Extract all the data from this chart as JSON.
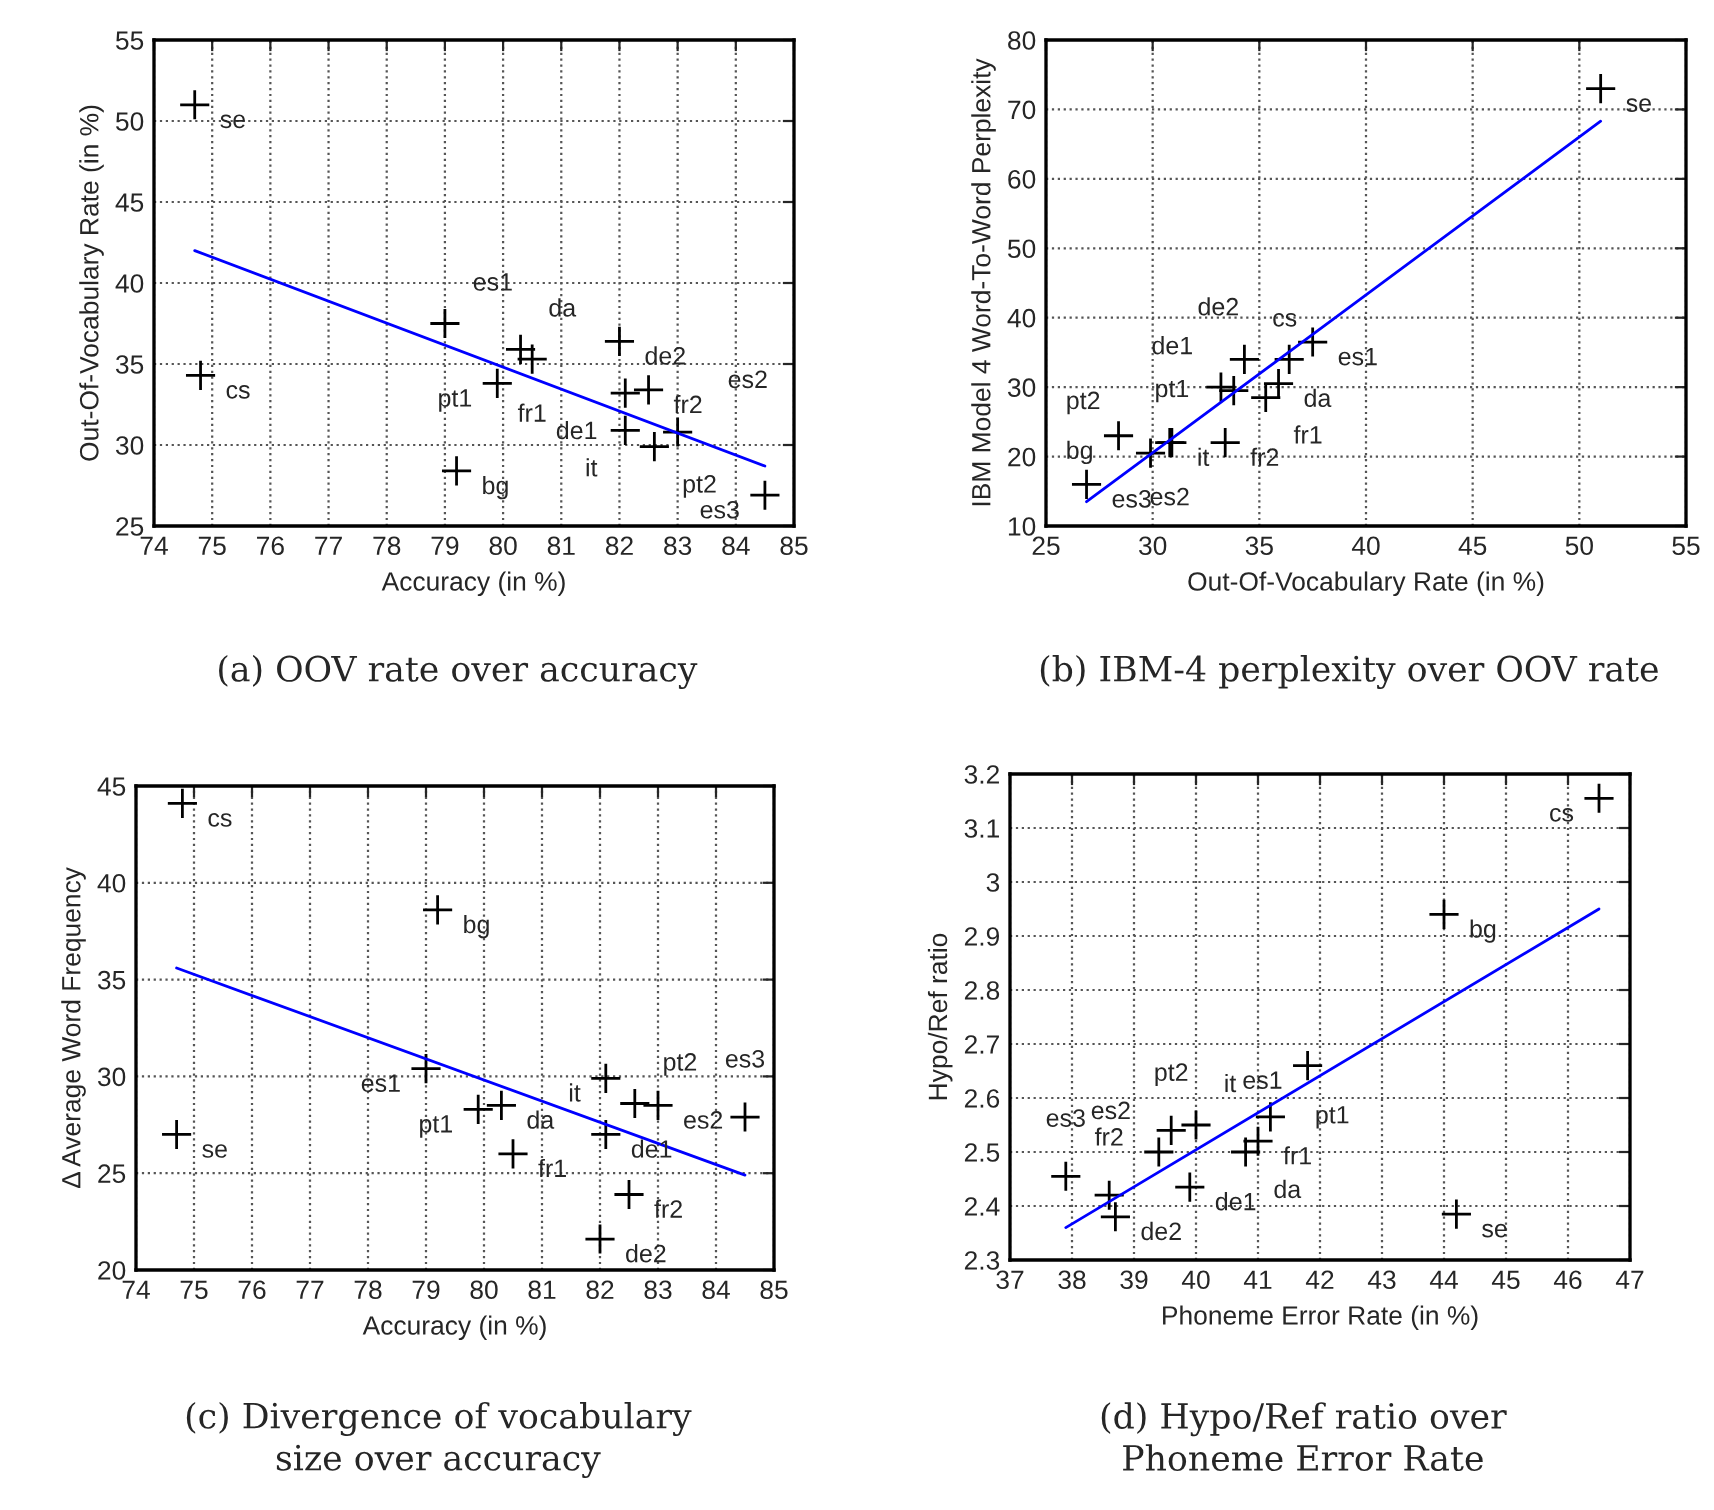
{
  "chart_data": [
    {
      "type": "scatter",
      "title": "(a) OOV rate over accuracy",
      "xlabel": "Accuracy (in %)",
      "ylabel": "Out-Of-Vocabulary Rate (in %)",
      "xlim": [
        74,
        85
      ],
      "ylim": [
        25,
        55
      ],
      "xticks": [
        74,
        75,
        76,
        77,
        78,
        79,
        80,
        81,
        82,
        83,
        84,
        85
      ],
      "yticks": [
        25,
        30,
        35,
        40,
        45,
        50,
        55
      ],
      "grid": true,
      "series": [
        {
          "marker": "cross",
          "color": "#000000",
          "x": [
            74.7,
            74.8,
            79.0,
            80.3,
            80.5,
            79.9,
            79.2,
            82.0,
            82.1,
            82.5,
            82.1,
            83.0,
            82.6,
            84.5
          ],
          "values": [
            51.0,
            34.3,
            37.5,
            35.9,
            35.3,
            33.8,
            28.4,
            36.4,
            33.2,
            33.4,
            30.9,
            30.8,
            29.9,
            26.9
          ]
        },
        {
          "type": "line",
          "color": "#0000ff",
          "x": [
            74.7,
            84.5
          ],
          "values": [
            42.0,
            28.7
          ]
        }
      ],
      "annotations": [
        {
          "text": "se",
          "x": 74.7,
          "y": 51.0
        },
        {
          "text": "cs",
          "x": 74.8,
          "y": 34.3
        },
        {
          "text": "es1",
          "x": 79.0,
          "y": 37.5
        },
        {
          "text": "da",
          "x": 80.3,
          "y": 35.9
        },
        {
          "text": "fr1",
          "x": 80.5,
          "y": 35.3
        },
        {
          "text": "pt1",
          "x": 79.9,
          "y": 33.8
        },
        {
          "text": "bg",
          "x": 79.2,
          "y": 28.4
        },
        {
          "text": "de2",
          "x": 82.0,
          "y": 36.4
        },
        {
          "text": "de1",
          "x": 82.1,
          "y": 33.2
        },
        {
          "text": "fr2",
          "x": 82.5,
          "y": 33.4
        },
        {
          "text": "it",
          "x": 82.1,
          "y": 30.9
        },
        {
          "text": "es2",
          "x": 83.0,
          "y": 30.8
        },
        {
          "text": "pt2",
          "x": 82.6,
          "y": 29.9
        },
        {
          "text": "es3",
          "x": 84.5,
          "y": 26.9
        }
      ]
    },
    {
      "type": "scatter",
      "title": "(b) IBM-4 perplexity over OOV rate",
      "xlabel": "Out-Of-Vocabulary Rate (in %)",
      "ylabel": "IBM Model 4 Word-To-Word Perplexity",
      "xlim": [
        25,
        55
      ],
      "ylim": [
        10,
        80
      ],
      "xticks": [
        25,
        30,
        35,
        40,
        45,
        50,
        55
      ],
      "yticks": [
        10,
        20,
        30,
        40,
        50,
        60,
        70,
        80
      ],
      "grid": true,
      "series": [
        {
          "marker": "cross",
          "color": "#000000",
          "x": [
            51.0,
            34.3,
            37.5,
            35.9,
            35.3,
            33.8,
            28.4,
            36.4,
            33.2,
            33.4,
            30.9,
            30.8,
            29.9,
            26.9
          ],
          "values": [
            73,
            34,
            36.5,
            30.5,
            28.5,
            29.5,
            23,
            34,
            30,
            22,
            22,
            22,
            20.5,
            16
          ]
        },
        {
          "type": "line",
          "color": "#0000ff",
          "x": [
            26.9,
            51.0
          ],
          "values": [
            13.5,
            68.3
          ]
        }
      ],
      "annotations": [
        {
          "text": "se",
          "x": 51.0,
          "y": 73
        },
        {
          "text": "cs",
          "x": 34.3,
          "y": 34
        },
        {
          "text": "es1",
          "x": 37.5,
          "y": 36.5
        },
        {
          "text": "da",
          "x": 35.9,
          "y": 30.5
        },
        {
          "text": "fr1",
          "x": 35.3,
          "y": 28.5
        },
        {
          "text": "pt1",
          "x": 33.8,
          "y": 29.5
        },
        {
          "text": "bg",
          "x": 28.4,
          "y": 23
        },
        {
          "text": "de2",
          "x": 36.4,
          "y": 34
        },
        {
          "text": "de1",
          "x": 33.2,
          "y": 30
        },
        {
          "text": "fr2",
          "x": 33.4,
          "y": 22
        },
        {
          "text": "it",
          "x": 30.9,
          "y": 22
        },
        {
          "text": "es2",
          "x": 30.8,
          "y": 22
        },
        {
          "text": "pt2",
          "x": 29.9,
          "y": 20.5
        },
        {
          "text": "es3",
          "x": 26.9,
          "y": 16
        }
      ]
    },
    {
      "type": "scatter",
      "title": "(c) Divergence of vocabulary\nsize over accuracy",
      "xlabel": "Accuracy (in %)",
      "ylabel": "Δ Average Word Frequency",
      "xlim": [
        74,
        85
      ],
      "ylim": [
        20,
        45
      ],
      "xticks": [
        74,
        75,
        76,
        77,
        78,
        79,
        80,
        81,
        82,
        83,
        84,
        85
      ],
      "yticks": [
        20,
        25,
        30,
        35,
        40,
        45
      ],
      "grid": true,
      "series": [
        {
          "marker": "cross",
          "color": "#000000",
          "x": [
            74.7,
            74.8,
            79.0,
            80.3,
            80.5,
            79.9,
            79.2,
            82.0,
            82.1,
            82.5,
            82.1,
            83.0,
            82.6,
            84.5
          ],
          "values": [
            27.0,
            44.1,
            30.4,
            28.5,
            26.0,
            28.3,
            38.6,
            21.6,
            27.0,
            23.9,
            29.9,
            28.5,
            28.6,
            27.9
          ]
        },
        {
          "type": "line",
          "color": "#0000ff",
          "x": [
            74.7,
            84.5
          ],
          "values": [
            35.6,
            24.9
          ]
        }
      ],
      "annotations": [
        {
          "text": "se",
          "x": 74.7,
          "y": 27.0
        },
        {
          "text": "cs",
          "x": 74.8,
          "y": 44.1
        },
        {
          "text": "es1",
          "x": 79.0,
          "y": 30.4
        },
        {
          "text": "da",
          "x": 80.3,
          "y": 28.5
        },
        {
          "text": "fr1",
          "x": 80.5,
          "y": 26.0
        },
        {
          "text": "pt1",
          "x": 79.9,
          "y": 28.3
        },
        {
          "text": "bg",
          "x": 79.2,
          "y": 38.6
        },
        {
          "text": "de2",
          "x": 82.0,
          "y": 21.6
        },
        {
          "text": "de1",
          "x": 82.1,
          "y": 27.0
        },
        {
          "text": "fr2",
          "x": 82.5,
          "y": 23.9
        },
        {
          "text": "it",
          "x": 82.1,
          "y": 29.9
        },
        {
          "text": "es2",
          "x": 83.0,
          "y": 28.5
        },
        {
          "text": "pt2",
          "x": 82.6,
          "y": 28.6
        },
        {
          "text": "es3",
          "x": 84.5,
          "y": 27.9
        }
      ]
    },
    {
      "type": "scatter",
      "title": "(d) Hypo/Ref ratio over\nPhoneme Error Rate",
      "xlabel": "Phoneme Error Rate (in %)",
      "ylabel": "Hypo/Ref ratio",
      "xlim": [
        37,
        47
      ],
      "ylim": [
        2.3,
        3.2
      ],
      "xticks": [
        37,
        38,
        39,
        40,
        41,
        42,
        43,
        44,
        45,
        46,
        47
      ],
      "yticks": [
        2.3,
        2.4,
        2.5,
        2.6,
        2.7,
        2.8,
        2.9,
        3,
        3.1,
        3.2
      ],
      "grid": true,
      "series": [
        {
          "marker": "cross",
          "color": "#000000",
          "x": [
            44.2,
            46.5,
            41.8,
            40.8,
            41.0,
            41.2,
            44.0,
            38.7,
            39.9,
            38.6,
            40.0,
            39.4,
            39.6,
            37.9
          ],
          "values": [
            2.385,
            3.155,
            2.66,
            2.5,
            2.52,
            2.565,
            2.94,
            2.38,
            2.435,
            2.42,
            2.55,
            2.5,
            2.54,
            2.455
          ]
        },
        {
          "type": "line",
          "color": "#0000ff",
          "x": [
            37.9,
            46.5
          ],
          "values": [
            2.36,
            2.95
          ]
        }
      ],
      "annotations": [
        {
          "text": "se",
          "x": 44.2,
          "y": 2.385
        },
        {
          "text": "cs",
          "x": 46.5,
          "y": 3.155
        },
        {
          "text": "es1",
          "x": 41.8,
          "y": 2.66
        },
        {
          "text": "da",
          "x": 40.8,
          "y": 2.5
        },
        {
          "text": "fr1",
          "x": 41.0,
          "y": 2.52
        },
        {
          "text": "pt1",
          "x": 41.2,
          "y": 2.565
        },
        {
          "text": "bg",
          "x": 44.0,
          "y": 2.94
        },
        {
          "text": "de2",
          "x": 38.7,
          "y": 2.38
        },
        {
          "text": "de1",
          "x": 39.9,
          "y": 2.435
        },
        {
          "text": "fr2",
          "x": 38.6,
          "y": 2.42
        },
        {
          "text": "it",
          "x": 40.0,
          "y": 2.55
        },
        {
          "text": "es2",
          "x": 39.4,
          "y": 2.5
        },
        {
          "text": "pt2",
          "x": 39.6,
          "y": 2.54
        },
        {
          "text": "es3",
          "x": 37.9,
          "y": 2.455
        }
      ]
    }
  ]
}
